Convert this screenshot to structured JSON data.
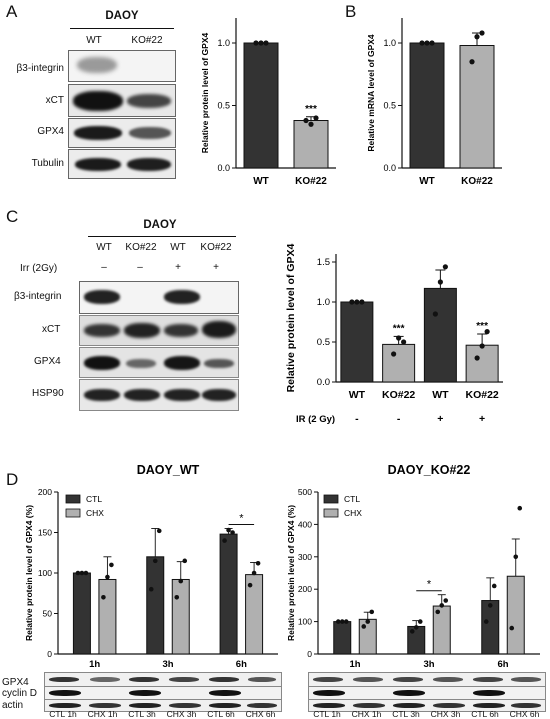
{
  "panels": {
    "A": {
      "letter": "A",
      "blot": {
        "title": "DAOY",
        "lanes": [
          "WT",
          "KO#22"
        ],
        "rows": [
          "β3-integrin",
          "xCT",
          "GPX4",
          "Tubulin"
        ]
      }
    },
    "B": {
      "letter": "B"
    },
    "C": {
      "letter": "C",
      "blot": {
        "title": "DAOY",
        "lanes": [
          "WT",
          "KO#22",
          "WT",
          "KO#22"
        ],
        "treatment_label": "Irr (2Gy)",
        "treatment_marks": [
          "–",
          "–",
          "+",
          "+"
        ],
        "rows": [
          "β3-integrin",
          "xCT",
          "GPX4",
          "HSP90"
        ]
      }
    },
    "D": {
      "letter": "D",
      "blot_rows": [
        "GPX4",
        "cyclin D",
        "actin"
      ],
      "lanes_left": [
        "CTL 1h",
        "CHX 1h",
        "CTL 3h",
        "CHX 3h",
        "CTL 6h",
        "CHX 6h"
      ],
      "lanes_right": [
        "CTL 1h",
        "CHX 1h",
        "CTL 3h",
        "CHX 3h",
        "CTL 6h",
        "CHX 6h"
      ]
    }
  },
  "chart_data": [
    {
      "id": "A-chart",
      "type": "bar",
      "categories": [
        "WT",
        "KO#22"
      ],
      "values": [
        1.0,
        0.38
      ],
      "errors": [
        0.0,
        0.03
      ],
      "points": [
        [
          1.0,
          1.0,
          1.0
        ],
        [
          0.38,
          0.35,
          0.4
        ]
      ],
      "ylabel": "Relative protein level of GPX4",
      "ylim": [
        0,
        1.2
      ],
      "yticks": [
        "0.0",
        "0.5",
        "1.0"
      ],
      "annotations": [
        "",
        "***"
      ],
      "colors": [
        "#333333",
        "#b0b0b0"
      ]
    },
    {
      "id": "B-chart",
      "type": "bar",
      "categories": [
        "WT",
        "KO#22"
      ],
      "values": [
        1.0,
        0.98
      ],
      "errors": [
        0.0,
        0.1
      ],
      "points": [
        [
          1.0,
          1.0,
          1.0
        ],
        [
          0.85,
          1.05,
          1.08
        ]
      ],
      "ylabel": "Relative mRNA level of GPX4",
      "ylim": [
        0,
        1.2
      ],
      "yticks": [
        "0.0",
        "0.5",
        "1.0"
      ],
      "annotations": [
        "",
        ""
      ],
      "colors": [
        "#333333",
        "#b0b0b0"
      ]
    },
    {
      "id": "C-chart",
      "type": "bar",
      "categories": [
        "WT",
        "KO#22",
        "WT",
        "KO#22"
      ],
      "values": [
        1.0,
        0.47,
        1.17,
        0.46
      ],
      "errors": [
        0.0,
        0.1,
        0.23,
        0.14
      ],
      "points": [
        [
          1.0,
          1.0,
          1.0
        ],
        [
          0.35,
          0.55,
          0.5
        ],
        [
          0.85,
          1.25,
          1.44
        ],
        [
          0.3,
          0.45,
          0.63
        ]
      ],
      "ylabel": "Relative protein level of GPX4",
      "ylim": [
        0,
        1.6
      ],
      "yticks": [
        "0.0",
        "0.5",
        "1.0",
        "1.5"
      ],
      "annotations": [
        "",
        "***",
        "",
        "***"
      ],
      "extra_row_label": "IR (2 Gy)",
      "extra_row_marks": [
        "-",
        "-",
        "+",
        "+"
      ],
      "colors": [
        "#333333",
        "#b0b0b0",
        "#333333",
        "#b0b0b0"
      ]
    },
    {
      "id": "D-left-chart",
      "type": "bar",
      "title": "DAOY_WT",
      "categories": [
        "1h",
        "3h",
        "6h"
      ],
      "series": [
        {
          "name": "CTL",
          "values": [
            100,
            120,
            148
          ],
          "errors": [
            0,
            35,
            7
          ],
          "points": [
            [
              100,
              100,
              100
            ],
            [
              80,
              115,
              152
            ],
            [
              140,
              153,
              150
            ]
          ]
        },
        {
          "name": "CHX",
          "values": [
            92,
            92,
            98
          ],
          "errors": [
            28,
            22,
            15
          ],
          "points": [
            [
              70,
              95,
              110
            ],
            [
              70,
              90,
              115
            ],
            [
              85,
              100,
              112
            ]
          ]
        }
      ],
      "ylabel": "Relative protein level of GPX4 (%)",
      "ylim": [
        0,
        200
      ],
      "yticks": [
        "0",
        "50",
        "100",
        "150",
        "200"
      ],
      "significance": [
        {
          "group": 2,
          "label": "*"
        }
      ],
      "legend_position": "top-left",
      "colors": [
        "#333333",
        "#b0b0b0"
      ]
    },
    {
      "id": "D-right-chart",
      "type": "bar",
      "title": "DAOY_KO#22",
      "categories": [
        "1h",
        "3h",
        "6h"
      ],
      "series": [
        {
          "name": "CTL",
          "values": [
            100,
            85,
            165
          ],
          "errors": [
            0,
            18,
            70
          ],
          "points": [
            [
              100,
              100,
              100
            ],
            [
              70,
              82,
              100
            ],
            [
              100,
              150,
              210
            ]
          ]
        },
        {
          "name": "CHX",
          "values": [
            107,
            148,
            240
          ],
          "errors": [
            22,
            35,
            115
          ],
          "points": [
            [
              85,
              100,
              130
            ],
            [
              130,
              150,
              165
            ],
            [
              80,
              300,
              450
            ]
          ]
        }
      ],
      "ylabel": "Relative protein level of GPX4 (%)",
      "ylim": [
        0,
        500
      ],
      "yticks": [
        "0",
        "100",
        "200",
        "300",
        "400",
        "500"
      ],
      "significance": [
        {
          "group": 1,
          "label": "*"
        }
      ],
      "legend_position": "top-left",
      "colors": [
        "#333333",
        "#b0b0b0"
      ]
    }
  ]
}
